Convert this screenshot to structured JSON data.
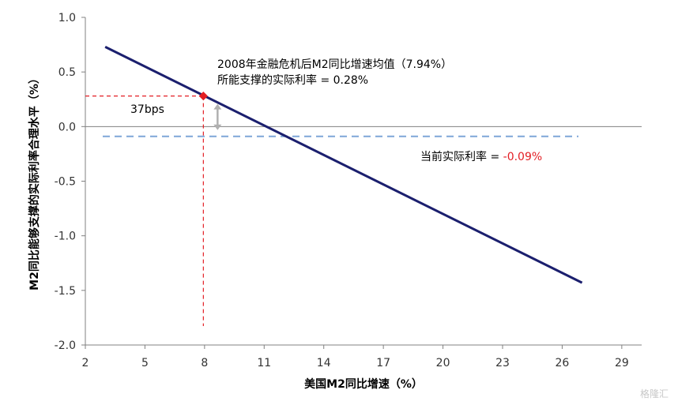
{
  "chart_data": {
    "type": "line",
    "xlabel": "美国M2同比增速（%）",
    "ylabel": "M2同比能够支撑的实际利率合理水平（%）",
    "xlim": [
      2,
      30
    ],
    "ylim": [
      -2.0,
      1.0
    ],
    "x_ticks": [
      "2",
      "5",
      "8",
      "11",
      "14",
      "17",
      "20",
      "23",
      "26",
      "29"
    ],
    "y_ticks": [
      "1.0",
      "0.5",
      "0.0",
      "-0.5",
      "-1.0",
      "-1.5",
      "-2.0"
    ],
    "grid": false,
    "series": [
      {
        "name": "",
        "color": "#1b1f6e",
        "points": [
          {
            "x": 3,
            "y": 0.73
          },
          {
            "x": 27,
            "y": -1.43
          }
        ]
      }
    ],
    "marker": {
      "x": 7.94,
      "y": 0.28,
      "color": "#e31e24"
    },
    "current_rate": {
      "y": -0.09,
      "color": "#7ea6d8"
    },
    "annotations": {
      "line1": "2008年金融危机后M2同比增速均值（7.94%）",
      "line2": "所能支撑的实际利率 = 0.28%",
      "bps": "37bps",
      "current_prefix": "当前实际利率 = ",
      "current_value": "-0.09%"
    }
  },
  "watermark": "格隆汇"
}
